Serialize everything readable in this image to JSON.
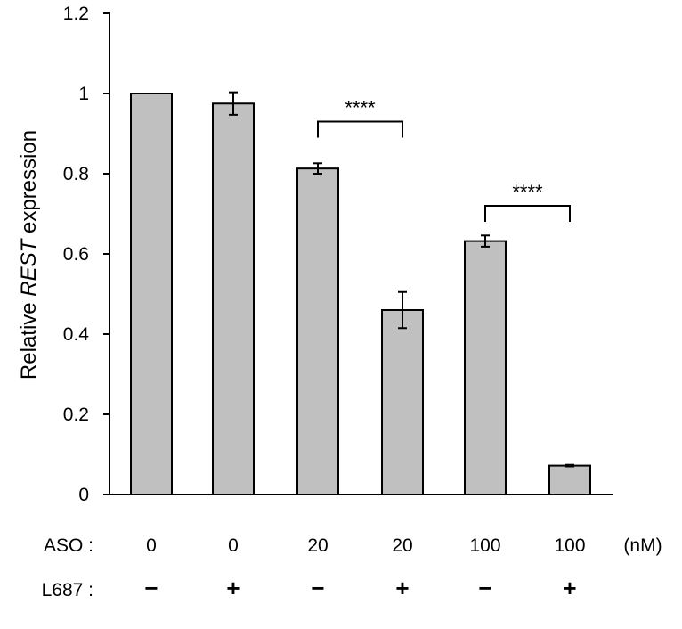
{
  "chart_data": {
    "type": "bar",
    "ylabel_prefix": "Relative ",
    "ylabel_gene": "REST",
    "ylabel_suffix": " expression",
    "ylim": [
      0,
      1.2
    ],
    "yticks": [
      "0",
      "0.2",
      "0.4",
      "0.6",
      "0.8",
      "1",
      "1.2"
    ],
    "ytick_values": [
      0,
      0.2,
      0.4,
      0.6,
      0.8,
      1.0,
      1.2
    ],
    "categories": [
      "ASO 0 / L687 −",
      "ASO 0 / L687 +",
      "ASO 20 / L687 −",
      "ASO 20 / L687 +",
      "ASO 100 / L687 −",
      "ASO 100 / L687 +"
    ],
    "values": [
      1.0,
      0.975,
      0.813,
      0.46,
      0.632,
      0.072
    ],
    "errors": [
      0.0,
      0.028,
      0.013,
      0.045,
      0.014,
      0.002
    ],
    "bar_color": "#c0c0c0",
    "significance": [
      {
        "from": 2,
        "to": 3,
        "label": "****",
        "y": 0.93
      },
      {
        "from": 4,
        "to": 5,
        "label": "****",
        "y": 0.72
      }
    ],
    "row_labels": {
      "aso_label": "ASO :",
      "aso_values": [
        "0",
        "0",
        "20",
        "20",
        "100",
        "100"
      ],
      "unit": "(nM)",
      "l687_label": "L687 :",
      "l687_values": [
        "−",
        "+",
        "−",
        "+",
        "−",
        "+"
      ]
    }
  }
}
